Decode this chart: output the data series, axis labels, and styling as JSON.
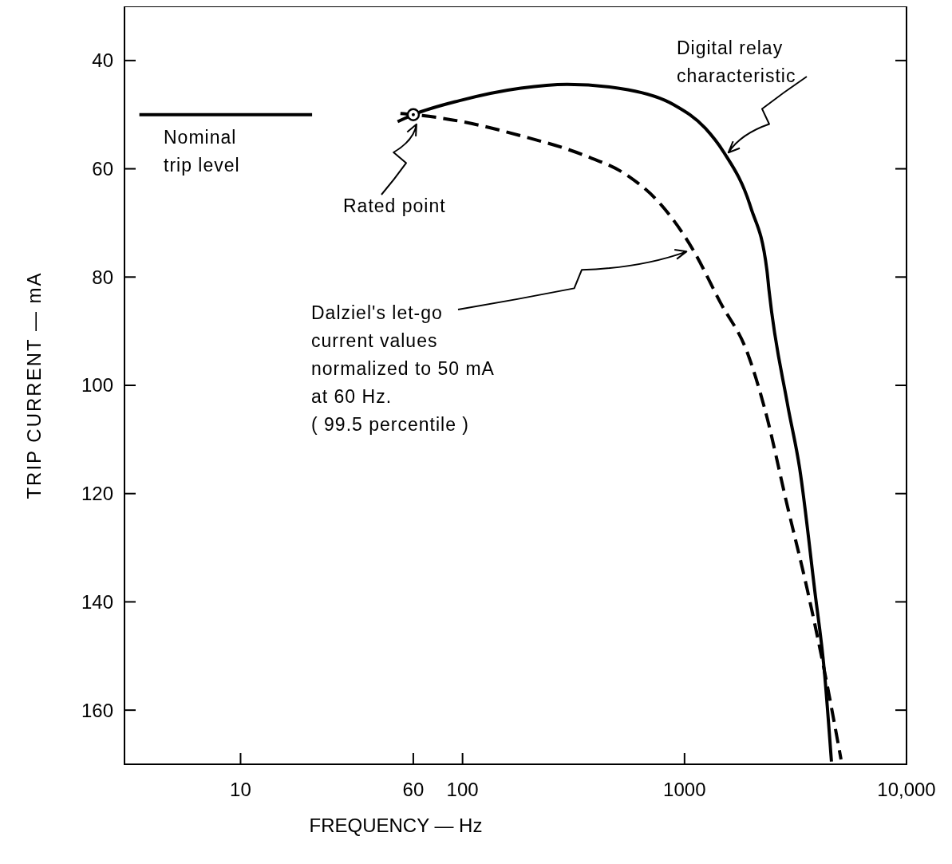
{
  "chart_data": {
    "type": "line",
    "xlabel": "FREQUENCY — Hz",
    "ylabel": "TRIP CURRENT — mA",
    "log": "x",
    "xlim": [
      3,
      10000
    ],
    "ylim": [
      170,
      30
    ],
    "xticks": [
      10,
      60,
      100,
      1000,
      {
        "value": 10000,
        "label": "10,000"
      }
    ],
    "yticks": [
      40,
      60,
      80,
      100,
      120,
      140,
      160
    ],
    "series": [
      {
        "color": "#000000",
        "line_style": "solid",
        "x": [
          3.5,
          21
        ],
        "values": [
          50,
          50
        ]
      },
      {
        "color": "#000000",
        "line_style": "solid",
        "x": [
          51,
          60,
          97,
          183,
          296,
          556,
          897,
          1240,
          1500,
          1990,
          2350,
          2400,
          2910,
          3300,
          3860,
          4260,
          4590
        ],
        "values": [
          51.3,
          50,
          47.4,
          45.1,
          44.4,
          45.4,
          48.2,
          52.5,
          56.9,
          67.2,
          78.7,
          82.3,
          103.5,
          115.3,
          137.9,
          152.6,
          169.5
        ]
      },
      {
        "color": "#000000",
        "line_style": "dashed",
        "x": [
          52.5,
          60,
          97,
          183,
          347,
          556,
          767,
          1090,
          1450,
          1920,
          2290,
          2910,
          3580,
          4260,
          5070
        ],
        "values": [
          49.8,
          50,
          51.2,
          53.9,
          57.4,
          61.3,
          66.2,
          74.9,
          84.7,
          94,
          104.1,
          122.4,
          137.9,
          152.6,
          169.1
        ]
      },
      {
        "type": "scatter",
        "color": "#000000",
        "marker": "circle",
        "x": [
          60
        ],
        "values": [
          50
        ]
      }
    ],
    "annotations": [
      "Nominal\ntrip level",
      "Rated point",
      {
        "text": "Digital relay\ncharacteristic",
        "x": 1500,
        "y": 57
      },
      {
        "text": "Dalziel's let-go\ncurrent values\nnormalized to 50 mA\nat 60 Hz.\n( 99.5 percentile )",
        "x": 1090,
        "y": 75
      }
    ]
  }
}
